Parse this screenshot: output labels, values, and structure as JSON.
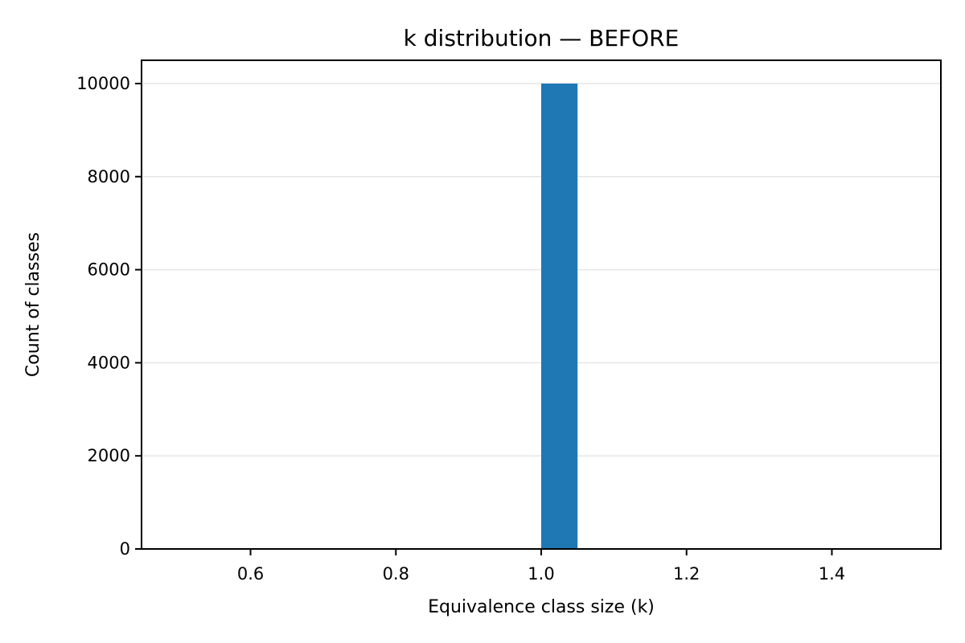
{
  "chart_data": {
    "type": "bar",
    "title": "k distribution — BEFORE",
    "xlabel": "Equivalence class size (k)",
    "ylabel": "Count of classes",
    "xlim": [
      0.45,
      1.55
    ],
    "ylim": [
      0,
      10500
    ],
    "xticks": [
      "0.6",
      "0.8",
      "1.0",
      "1.2",
      "1.4"
    ],
    "yticks": [
      "0",
      "2000",
      "4000",
      "6000",
      "8000",
      "10000"
    ],
    "grid": "horizontal",
    "bars": [
      {
        "x_start": 1.0,
        "x_end": 1.05,
        "value": 10000
      }
    ],
    "bar_color": "#1f77b4"
  }
}
